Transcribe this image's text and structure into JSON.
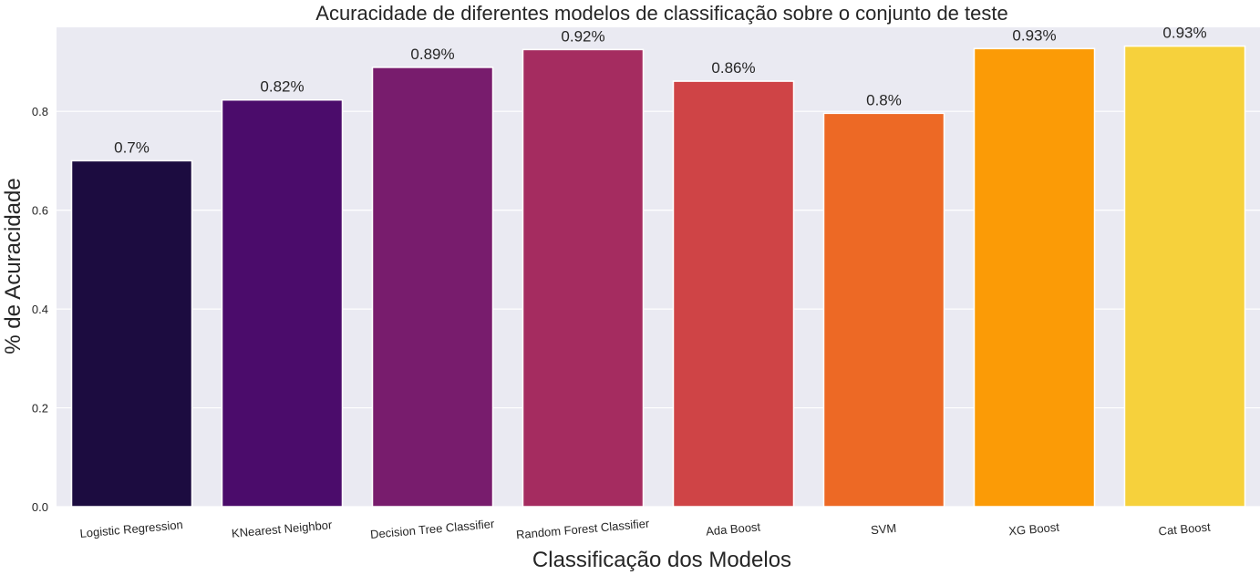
{
  "chart_data": {
    "type": "bar",
    "title": "Acuracidade de diferentes modelos de classificação sobre o conjunto de teste",
    "xlabel": "Classificação dos Modelos",
    "ylabel": "% de Acuracidade",
    "categories": [
      "Logistic Regression",
      "KNearest Neighbor",
      "Decision Tree Classifier",
      "Random Forest Classifier",
      "Ada Boost",
      "SVM",
      "XG Boost",
      "Cat Boost"
    ],
    "values": [
      0.7,
      0.823,
      0.889,
      0.925,
      0.861,
      0.796,
      0.927,
      0.932
    ],
    "data_labels": [
      "0.7%",
      "0.82%",
      "0.89%",
      "0.92%",
      "0.86%",
      "0.8%",
      "0.93%",
      "0.93%"
    ],
    "colors": [
      "#1c0c40",
      "#4b0c6b",
      "#781c6d",
      "#a52c60",
      "#cf4446",
      "#ed6925",
      "#fb9b06",
      "#f6d13c"
    ],
    "ylim": [
      0,
      0.97
    ],
    "yticks": [
      0.0,
      0.2,
      0.4,
      0.6,
      0.8
    ],
    "ytick_labels": [
      "0.0",
      "0.2",
      "0.4",
      "0.6",
      "0.8"
    ],
    "grid": true,
    "background": "#eaeaf2"
  }
}
